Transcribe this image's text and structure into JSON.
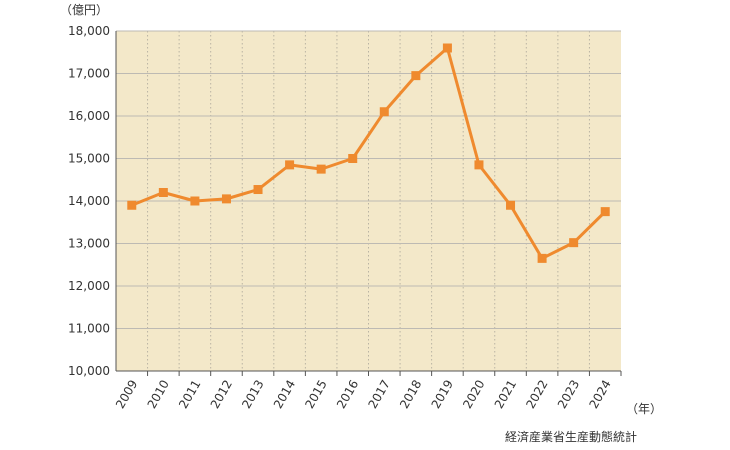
{
  "chart_data": {
    "type": "line",
    "y_unit": "（億円）",
    "x_unit": "（年）",
    "source": "経済産業省生産動態統計",
    "categories": [
      "2009",
      "2010",
      "2011",
      "2012",
      "2013",
      "2014",
      "2015",
      "2016",
      "2017",
      "2018",
      "2019",
      "2020",
      "2021",
      "2022",
      "2023",
      "2024"
    ],
    "series": [
      {
        "color": "#ef8a2e",
        "values": [
          13900,
          14200,
          14000,
          14050,
          14270,
          14850,
          14750,
          15000,
          16100,
          16950,
          17600,
          14850,
          13900,
          12650,
          13020,
          13750
        ]
      }
    ],
    "ylim": [
      10000,
      18000
    ],
    "yticks": [
      {
        "value": 10000,
        "label": "10,000"
      },
      {
        "value": 11000,
        "label": "11,000"
      },
      {
        "value": 12000,
        "label": "12,000"
      },
      {
        "value": 13000,
        "label": "13,000"
      },
      {
        "value": 14000,
        "label": "14,000"
      },
      {
        "value": 15000,
        "label": "15,000"
      },
      {
        "value": 16000,
        "label": "16,000"
      },
      {
        "value": 17000,
        "label": "17,000"
      },
      {
        "value": 18000,
        "label": "18,000"
      }
    ],
    "grid": true,
    "background": "#f3e8c9"
  }
}
